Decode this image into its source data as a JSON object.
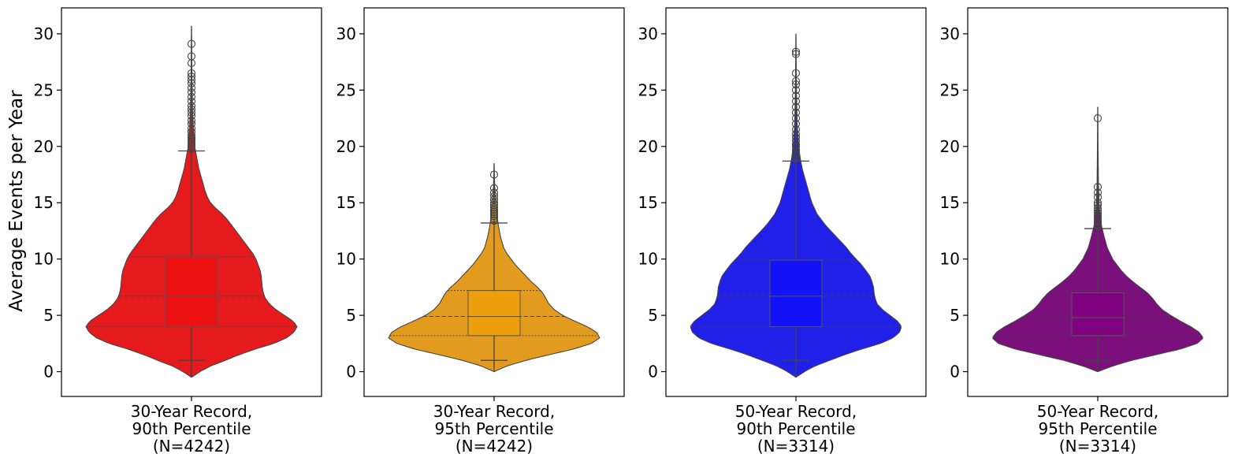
{
  "chart_data": {
    "type": "violin",
    "ylabel": "Average Events per Year",
    "ylim": [
      -2.2,
      32.3
    ],
    "yticks": [
      0,
      5,
      10,
      15,
      20,
      25,
      30
    ],
    "grid": false,
    "panels": [
      {
        "label": [
          "30-Year Record,",
          "90th Percentile",
          "(N=4242)"
        ],
        "color": "#e41a1c",
        "box_color": "#ee1111",
        "stats": {
          "whisker_low": 1.0,
          "q1": 4.0,
          "median": 6.7,
          "q3": 10.2,
          "whisker_high": 19.6,
          "min": -0.5,
          "max": 30.7
        },
        "outliers": [
          19.8,
          20.0,
          20.2,
          20.4,
          20.6,
          20.8,
          21.0,
          21.3,
          21.6,
          22.0,
          22.3,
          22.7,
          23.0,
          23.3,
          23.6,
          24.0,
          24.4,
          24.8,
          25.2,
          25.6,
          25.9,
          26.2,
          26.5,
          27.4,
          28.0,
          29.1
        ],
        "density_profile": [
          [
            -0.5,
            0.0
          ],
          [
            0.0,
            0.08
          ],
          [
            0.5,
            0.18
          ],
          [
            1.0,
            0.32
          ],
          [
            1.5,
            0.45
          ],
          [
            2.0,
            0.6
          ],
          [
            2.5,
            0.78
          ],
          [
            3.0,
            0.9
          ],
          [
            3.5,
            0.97
          ],
          [
            4.0,
            1.0
          ],
          [
            4.5,
            0.96
          ],
          [
            5.0,
            0.88
          ],
          [
            5.5,
            0.8
          ],
          [
            6.0,
            0.74
          ],
          [
            6.5,
            0.7
          ],
          [
            7.0,
            0.68
          ],
          [
            7.5,
            0.67
          ],
          [
            8.0,
            0.665
          ],
          [
            8.5,
            0.66
          ],
          [
            9.0,
            0.65
          ],
          [
            9.5,
            0.63
          ],
          [
            10.0,
            0.61
          ],
          [
            10.5,
            0.58
          ],
          [
            11.0,
            0.54
          ],
          [
            11.5,
            0.5
          ],
          [
            12.0,
            0.46
          ],
          [
            12.5,
            0.42
          ],
          [
            13.0,
            0.38
          ],
          [
            13.5,
            0.34
          ],
          [
            14.0,
            0.29
          ],
          [
            14.5,
            0.23
          ],
          [
            15.0,
            0.18
          ],
          [
            15.5,
            0.15
          ],
          [
            16.0,
            0.13
          ],
          [
            17.0,
            0.1
          ],
          [
            18.0,
            0.07
          ],
          [
            19.0,
            0.05
          ],
          [
            20.0,
            0.03
          ],
          [
            21.0,
            0.02
          ],
          [
            23.0,
            0.01
          ],
          [
            25.0,
            0.006
          ],
          [
            27.0,
            0.003
          ],
          [
            29.0,
            0.002
          ],
          [
            30.7,
            0.0
          ]
        ]
      },
      {
        "label": [
          "30-Year Record,",
          "95th Percentile",
          "(N=4242)"
        ],
        "color": "#e39b1f",
        "box_color": "#f0a00c",
        "stats": {
          "whisker_low": 1.0,
          "q1": 3.2,
          "median": 4.9,
          "q3": 7.2,
          "whisker_high": 13.2,
          "min": 0.0,
          "max": 18.5
        },
        "outliers": [
          13.4,
          13.6,
          13.8,
          14.0,
          14.2,
          14.4,
          14.6,
          14.8,
          15.0,
          15.3,
          15.6,
          15.9,
          16.3,
          17.5
        ],
        "density_profile": [
          [
            0.0,
            0.0
          ],
          [
            0.5,
            0.12
          ],
          [
            1.0,
            0.3
          ],
          [
            1.5,
            0.52
          ],
          [
            2.0,
            0.75
          ],
          [
            2.5,
            0.92
          ],
          [
            3.0,
            1.0
          ],
          [
            3.5,
            0.97
          ],
          [
            4.0,
            0.88
          ],
          [
            4.5,
            0.76
          ],
          [
            5.0,
            0.65
          ],
          [
            5.5,
            0.57
          ],
          [
            6.0,
            0.52
          ],
          [
            6.5,
            0.49
          ],
          [
            7.0,
            0.46
          ],
          [
            7.5,
            0.41
          ],
          [
            8.0,
            0.35
          ],
          [
            8.5,
            0.3
          ],
          [
            9.0,
            0.25
          ],
          [
            9.5,
            0.2
          ],
          [
            10.0,
            0.16
          ],
          [
            10.5,
            0.12
          ],
          [
            11.0,
            0.09
          ],
          [
            12.0,
            0.06
          ],
          [
            13.0,
            0.04
          ],
          [
            14.0,
            0.025
          ],
          [
            15.0,
            0.015
          ],
          [
            16.0,
            0.008
          ],
          [
            17.0,
            0.004
          ],
          [
            18.5,
            0.0
          ]
        ]
      },
      {
        "label": [
          "50-Year Record,",
          "90th Percentile",
          "(N=3314)"
        ],
        "color": "#2020e8",
        "box_color": "#1010f8",
        "stats": {
          "whisker_low": 1.0,
          "q1": 4.0,
          "median": 6.7,
          "q3": 9.9,
          "whisker_high": 18.7,
          "min": -0.5,
          "max": 30.0
        },
        "outliers": [
          18.9,
          19.1,
          19.3,
          19.5,
          19.7,
          20.0,
          20.2,
          20.5,
          20.8,
          21.1,
          21.5,
          22.0,
          22.5,
          23.0,
          23.5,
          24.0,
          24.5,
          25.0,
          25.5,
          25.8,
          26.5,
          28.2,
          28.4
        ],
        "density_profile": [
          [
            -0.5,
            0.0
          ],
          [
            0.0,
            0.08
          ],
          [
            0.5,
            0.18
          ],
          [
            1.0,
            0.32
          ],
          [
            1.5,
            0.46
          ],
          [
            2.0,
            0.62
          ],
          [
            2.5,
            0.8
          ],
          [
            3.0,
            0.92
          ],
          [
            3.5,
            0.98
          ],
          [
            4.0,
            1.0
          ],
          [
            4.5,
            0.96
          ],
          [
            5.0,
            0.89
          ],
          [
            5.5,
            0.82
          ],
          [
            6.0,
            0.77
          ],
          [
            6.5,
            0.75
          ],
          [
            7.0,
            0.74
          ],
          [
            7.5,
            0.735
          ],
          [
            8.0,
            0.72
          ],
          [
            8.5,
            0.7
          ],
          [
            9.0,
            0.66
          ],
          [
            9.5,
            0.62
          ],
          [
            10.0,
            0.57
          ],
          [
            10.5,
            0.52
          ],
          [
            11.0,
            0.48
          ],
          [
            11.5,
            0.43
          ],
          [
            12.0,
            0.38
          ],
          [
            12.5,
            0.33
          ],
          [
            13.0,
            0.28
          ],
          [
            13.5,
            0.24
          ],
          [
            14.0,
            0.2
          ],
          [
            15.0,
            0.15
          ],
          [
            16.0,
            0.12
          ],
          [
            17.0,
            0.09
          ],
          [
            18.0,
            0.06
          ],
          [
            19.0,
            0.04
          ],
          [
            20.0,
            0.025
          ],
          [
            22.0,
            0.012
          ],
          [
            24.0,
            0.007
          ],
          [
            26.0,
            0.004
          ],
          [
            28.0,
            0.002
          ],
          [
            30.0,
            0.0
          ]
        ]
      },
      {
        "label": [
          "50-Year Record,",
          "95th Percentile",
          "(N=3314)"
        ],
        "color": "#7b0f7b",
        "box_color": "#800080",
        "stats": {
          "whisker_low": 1.0,
          "q1": 3.2,
          "median": 4.8,
          "q3": 7.0,
          "whisker_high": 12.7,
          "min": 0.0,
          "max": 23.5
        },
        "outliers": [
          12.9,
          13.1,
          13.3,
          13.5,
          13.7,
          13.9,
          14.1,
          14.3,
          14.5,
          14.8,
          15.0,
          15.5,
          15.9,
          16.4,
          22.5
        ],
        "density_profile": [
          [
            0.0,
            0.0
          ],
          [
            0.5,
            0.14
          ],
          [
            1.0,
            0.32
          ],
          [
            1.5,
            0.55
          ],
          [
            2.0,
            0.78
          ],
          [
            2.5,
            0.94
          ],
          [
            3.0,
            1.0
          ],
          [
            3.5,
            0.96
          ],
          [
            4.0,
            0.88
          ],
          [
            4.5,
            0.78
          ],
          [
            5.0,
            0.69
          ],
          [
            5.5,
            0.61
          ],
          [
            6.0,
            0.56
          ],
          [
            6.5,
            0.52
          ],
          [
            7.0,
            0.47
          ],
          [
            7.5,
            0.4
          ],
          [
            8.0,
            0.33
          ],
          [
            8.5,
            0.27
          ],
          [
            9.0,
            0.22
          ],
          [
            9.5,
            0.18
          ],
          [
            10.0,
            0.14
          ],
          [
            11.0,
            0.09
          ],
          [
            12.0,
            0.06
          ],
          [
            13.0,
            0.035
          ],
          [
            14.0,
            0.02
          ],
          [
            15.0,
            0.012
          ],
          [
            17.0,
            0.006
          ],
          [
            19.0,
            0.004
          ],
          [
            21.0,
            0.002
          ],
          [
            23.5,
            0.0
          ]
        ]
      }
    ]
  }
}
